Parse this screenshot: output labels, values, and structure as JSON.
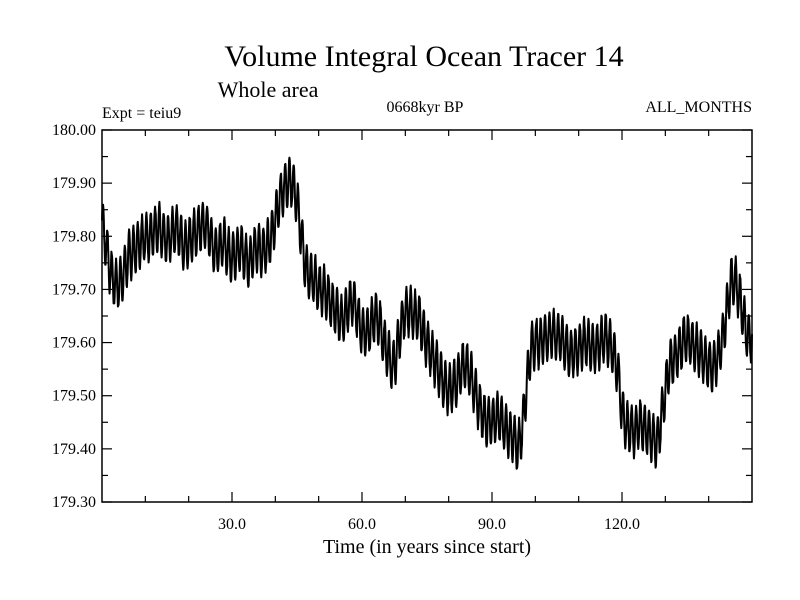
{
  "chart_data": {
    "type": "line",
    "title": "Volume Integral Ocean Tracer 14",
    "subtitle": "Whole area",
    "header_left": "Expt = teiu9",
    "header_center": "0668kyr BP",
    "header_right": "ALL_MONTHS",
    "xlabel": "Time (in years since start)",
    "ylabel": "",
    "xlim": [
      0,
      150
    ],
    "ylim": [
      179.3,
      180.0
    ],
    "xticks_major": [
      30,
      60,
      90,
      120
    ],
    "xtick_labels": [
      "30.0",
      "60.0",
      "90.0",
      "120.0"
    ],
    "xticks_minor_step": 10,
    "yticks_major": [
      179.3,
      179.4,
      179.5,
      179.6,
      179.7,
      179.8,
      179.9,
      180.0
    ],
    "ytick_labels": [
      "179.30",
      "179.40",
      "179.50",
      "179.60",
      "179.70",
      "179.80",
      "179.90",
      "180.00"
    ],
    "yticks_minor_step": 0.05,
    "grid": false,
    "line_color": "#000000",
    "series": [
      {
        "sampling": "monthly",
        "seasonal_amplitude": 0.045,
        "annual_mean": {
          "x": [
            0,
            1,
            2,
            3,
            4,
            5,
            6,
            7,
            8,
            9,
            10,
            11,
            12,
            13,
            14,
            15,
            16,
            17,
            18,
            19,
            20,
            21,
            22,
            23,
            24,
            25,
            26,
            27,
            28,
            29,
            30,
            31,
            32,
            33,
            34,
            35,
            36,
            37,
            38,
            39,
            40,
            41,
            42,
            43,
            44,
            45,
            46,
            47,
            48,
            49,
            50,
            51,
            52,
            53,
            54,
            55,
            56,
            57,
            58,
            59,
            60,
            61,
            62,
            63,
            64,
            65,
            66,
            67,
            68,
            69,
            70,
            71,
            72,
            73,
            74,
            75,
            76,
            77,
            78,
            79,
            80,
            81,
            82,
            83,
            84,
            85,
            86,
            87,
            88,
            89,
            90,
            91,
            92,
            93,
            94,
            95,
            96,
            97,
            98,
            99,
            100,
            101,
            102,
            103,
            104,
            105,
            106,
            107,
            108,
            109,
            110,
            111,
            112,
            113,
            114,
            115,
            116,
            117,
            118,
            119,
            120,
            121,
            122,
            123,
            124,
            125,
            126,
            127,
            128,
            129,
            130,
            131,
            132,
            133,
            134,
            135,
            136,
            137,
            138,
            139,
            140,
            141,
            142,
            143,
            144,
            145,
            146,
            147,
            148,
            149
          ],
          "y": [
            179.83,
            179.78,
            179.73,
            179.71,
            179.71,
            179.73,
            179.76,
            179.77,
            179.78,
            179.79,
            179.8,
            179.8,
            179.81,
            179.82,
            179.8,
            179.79,
            179.8,
            179.82,
            179.8,
            179.78,
            179.79,
            179.8,
            179.81,
            179.82,
            179.82,
            179.8,
            179.77,
            179.78,
            179.79,
            179.77,
            179.76,
            179.77,
            179.78,
            179.76,
            179.75,
            179.77,
            179.78,
            179.77,
            179.78,
            179.8,
            179.83,
            179.87,
            179.89,
            179.9,
            179.9,
            179.87,
            179.8,
            179.74,
            179.72,
            179.72,
            179.7,
            179.7,
            179.69,
            179.67,
            179.66,
            179.64,
            179.65,
            179.67,
            179.68,
            179.65,
            179.62,
            179.62,
            179.63,
            179.65,
            179.64,
            179.6,
            179.58,
            179.55,
            179.58,
            179.63,
            179.66,
            179.66,
            179.65,
            179.65,
            179.62,
            179.6,
            179.58,
            179.56,
            179.54,
            179.52,
            179.51,
            179.52,
            179.53,
            179.55,
            179.56,
            179.54,
            179.51,
            179.48,
            179.46,
            179.45,
            179.45,
            179.46,
            179.46,
            179.44,
            179.43,
            179.42,
            179.4,
            179.44,
            179.52,
            179.59,
            179.6,
            179.6,
            179.61,
            179.61,
            179.62,
            179.61,
            179.61,
            179.59,
            179.58,
            179.58,
            179.59,
            179.6,
            179.6,
            179.59,
            179.59,
            179.6,
            179.61,
            179.6,
            179.58,
            179.55,
            179.47,
            179.44,
            179.44,
            179.43,
            179.45,
            179.44,
            179.43,
            179.42,
            179.41,
            179.45,
            179.51,
            179.56,
            179.57,
            179.58,
            179.6,
            179.61,
            179.6,
            179.59,
            179.58,
            179.57,
            179.56,
            179.55,
            179.57,
            179.6,
            179.65,
            179.71,
            179.72,
            179.69,
            179.65,
            179.61
          ]
        }
      }
    ]
  }
}
